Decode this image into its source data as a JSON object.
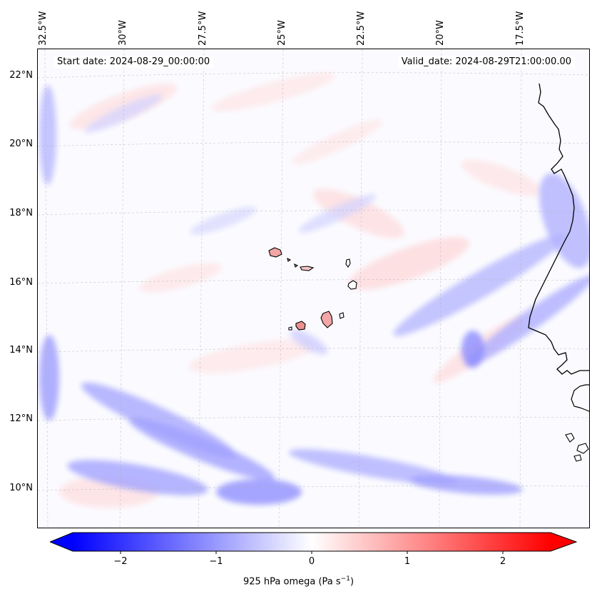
{
  "map": {
    "start_date": "Start date: 2024-08-29_00:00:00",
    "valid_date": "Valid_date: 2024-08-29T21:00:00.00",
    "lon_labels": [
      "32.5°W",
      "30°W",
      "27.5°W",
      "25°W",
      "22.5°W",
      "20°W",
      "17.5°W"
    ],
    "lat_labels": [
      "22°N",
      "20°N",
      "18°N",
      "16°N",
      "14°N",
      "12°N",
      "10°N"
    ],
    "colors": {
      "negative": "#0000ff",
      "neutral": "#ffffff",
      "positive": "#ff0000",
      "coastline": "#000000",
      "gridline": "#b0b0b0"
    }
  },
  "colorbar": {
    "ticks": [
      "−2",
      "−1",
      "0",
      "1",
      "2"
    ],
    "tick_values": [
      -2,
      -1,
      0,
      1,
      2
    ],
    "range": [
      -2.5,
      2.5
    ],
    "label_prefix": "925 hPa omega (Pa s",
    "label_exp": "−1",
    "label_suffix": ")",
    "extend": "both"
  }
}
